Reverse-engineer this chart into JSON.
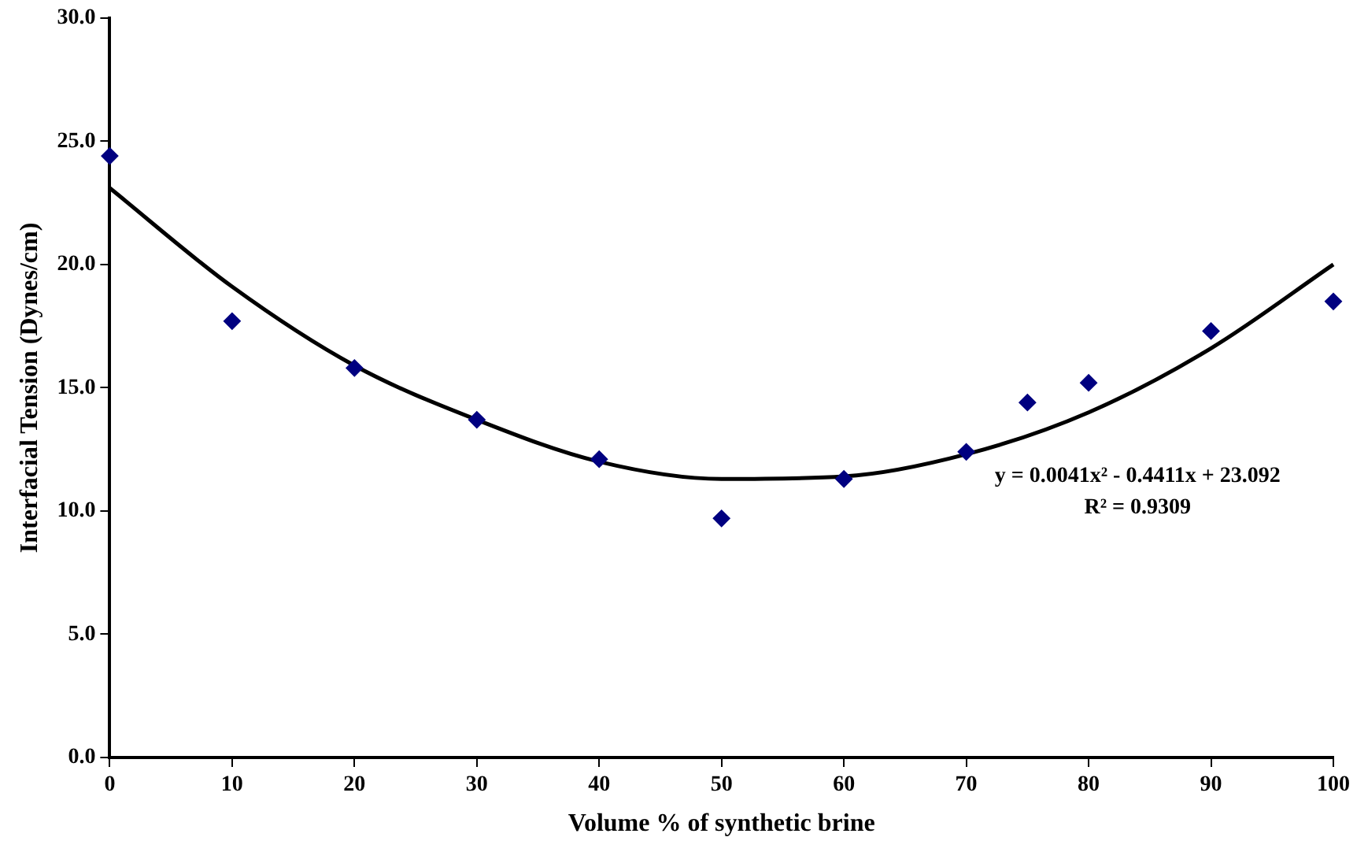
{
  "chart_data": {
    "type": "scatter",
    "xlabel": "Volume % of synthetic brine",
    "ylabel": "Interfacial Tension (Dynes/cm)",
    "x": [
      0,
      10,
      20,
      30,
      40,
      50,
      60,
      70,
      75,
      80,
      90,
      100
    ],
    "series": [
      {
        "color": "#000080",
        "marker": "diamond",
        "values": [
          24.4,
          17.7,
          15.8,
          13.7,
          12.1,
          9.7,
          11.3,
          12.4,
          14.4,
          15.2,
          17.3,
          18.5
        ]
      },
      {
        "type": "line",
        "color": "#000000",
        "marker": "none",
        "x": [
          0,
          10,
          20,
          30,
          40,
          50,
          60,
          70,
          80,
          90,
          100
        ],
        "values": [
          23.1,
          19.1,
          15.9,
          13.7,
          12.0,
          11.3,
          11.4,
          12.3,
          14.0,
          16.6,
          20.0
        ]
      }
    ],
    "annotations": [
      "y = 0.0041x² - 0.4411x + 23.092",
      "R² = 0.9309"
    ],
    "xlim": [
      0,
      100
    ],
    "xticks": [
      0,
      10,
      20,
      30,
      40,
      50,
      60,
      70,
      80,
      90,
      100
    ],
    "ylim": [
      0,
      30
    ],
    "yticks": [
      {
        "value": 0,
        "label": "0.0"
      },
      {
        "value": 5,
        "label": "5.0"
      },
      {
        "value": 10,
        "label": "10.0"
      },
      {
        "value": 15,
        "label": "15.0"
      },
      {
        "value": 20,
        "label": "20.0"
      },
      {
        "value": 25,
        "label": "25.0"
      },
      {
        "value": 30,
        "label": "30.0"
      }
    ],
    "grid": false,
    "legend": false
  }
}
